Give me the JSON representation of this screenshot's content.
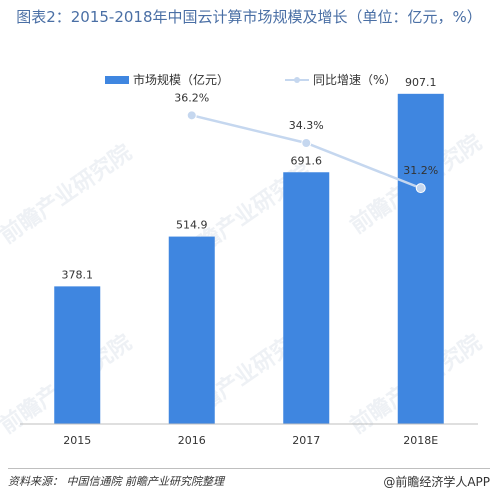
{
  "title": "图表2：2015-2018年中国云计算市场规模及增长（单位：亿元，%）",
  "footer": {
    "source": "资料来源：  中国信通院  前瞻产业研究院整理",
    "brand": "@前瞻经济学人APP"
  },
  "watermark": "前瞻产业研究院",
  "colors": {
    "bar": "#3f86e0",
    "line": "#c5d7ef",
    "marker": "#c5d7ef",
    "title": "#4a6fa5",
    "axis": "#bfbfbf"
  },
  "chart_data": {
    "type": "bar",
    "categories": [
      "2015",
      "2016",
      "2017",
      "2018E"
    ],
    "series": [
      {
        "name": "市场规模（亿元）",
        "type": "bar",
        "values": [
          378.1,
          514.9,
          691.6,
          907.1
        ],
        "labels": [
          "378.1",
          "514.9",
          "691.6",
          "907.1"
        ]
      },
      {
        "name": "同比增速（%）",
        "type": "line",
        "values": [
          null,
          36.2,
          34.3,
          31.2
        ],
        "labels": [
          "",
          "36.2%",
          "34.3%",
          "31.2%"
        ]
      }
    ],
    "bar_ylim": [
      0,
      1000
    ],
    "line_ylim": [
      15,
      40
    ],
    "legend_position": "top-center",
    "grid": false
  }
}
